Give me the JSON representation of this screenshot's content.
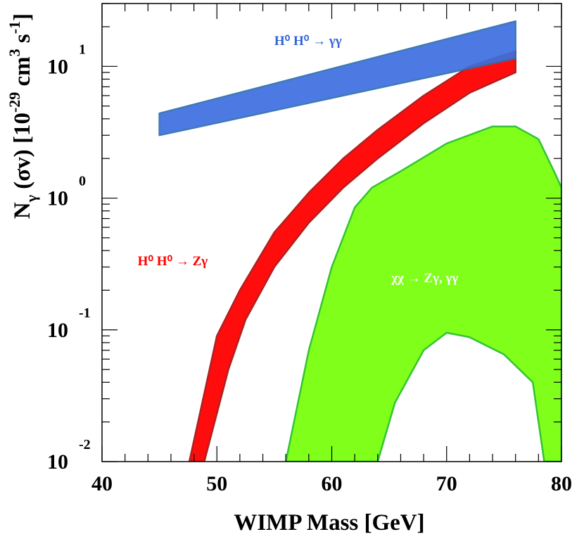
{
  "chart_data": {
    "type": "area",
    "xlabel": "WIMP Mass [GeV]",
    "ylabel": "N_γ (σv) [10^-29 cm^3 s^-1]",
    "ylabel_parts": {
      "base": "N",
      "sub": "γ",
      "mid": " (σv) [10",
      "exp1": "-29",
      "unit1": " cm",
      "exp2": "3",
      "unit2": " s",
      "exp3": "-1",
      "end": "]"
    },
    "xlim": [
      40,
      80
    ],
    "ylim": [
      0.01,
      30
    ],
    "yscale": "log",
    "x_ticks": [
      {
        "value": 40,
        "label": "40"
      },
      {
        "value": 50,
        "label": "50"
      },
      {
        "value": 60,
        "label": "60"
      },
      {
        "value": 70,
        "label": "70"
      },
      {
        "value": 80,
        "label": "80"
      }
    ],
    "y_ticks": [
      {
        "value": 0.01,
        "base": "10",
        "exp": "-2"
      },
      {
        "value": 0.1,
        "base": "10",
        "exp": "-1"
      },
      {
        "value": 1,
        "base": "10",
        "exp": "0"
      },
      {
        "value": 10,
        "base": "10",
        "exp": "1"
      }
    ],
    "series": [
      {
        "name": "H0H0-gammagamma",
        "color": "#3d6fe0",
        "stroke": "#2f6fb0",
        "upper": [
          [
            45,
            4.4
          ],
          [
            76,
            22
          ]
        ],
        "lower": [
          [
            45,
            3.0
          ],
          [
            76,
            11.5
          ]
        ]
      },
      {
        "name": "H0H0-Zgamma",
        "color": "#ff0d0d",
        "stroke": "#b02020",
        "upper": [
          [
            47.6,
            0.01
          ],
          [
            50,
            0.09
          ],
          [
            52,
            0.2
          ],
          [
            55,
            0.55
          ],
          [
            58,
            1.1
          ],
          [
            61,
            2.0
          ],
          [
            64,
            3.3
          ],
          [
            68,
            6.0
          ],
          [
            72,
            10
          ],
          [
            76,
            13
          ]
        ],
        "lower": [
          [
            48.9,
            0.01
          ],
          [
            51,
            0.05
          ],
          [
            52.5,
            0.12
          ],
          [
            55,
            0.3
          ],
          [
            58,
            0.65
          ],
          [
            61,
            1.2
          ],
          [
            64,
            2.0
          ],
          [
            68,
            3.7
          ],
          [
            72,
            6.3
          ],
          [
            76,
            9.0
          ]
        ]
      },
      {
        "name": "chichi-Zgamma-gammagamma",
        "color": "#7fff1a",
        "stroke": "#33c433",
        "outer": [
          [
            56,
            0.01
          ],
          [
            58,
            0.07
          ],
          [
            60,
            0.3
          ],
          [
            62,
            0.85
          ],
          [
            63.5,
            1.2
          ],
          [
            66,
            1.6
          ],
          [
            70,
            2.6
          ],
          [
            74,
            3.5
          ],
          [
            76,
            3.5
          ],
          [
            78,
            2.8
          ],
          [
            79.5,
            1.5
          ],
          [
            80,
            1.2
          ]
        ],
        "inner": [
          [
            80,
            0.01
          ],
          [
            78.5,
            0.01
          ],
          [
            77.5,
            0.04
          ],
          [
            75,
            0.065
          ],
          [
            72,
            0.088
          ],
          [
            70,
            0.095
          ],
          [
            68,
            0.07
          ],
          [
            65.5,
            0.028
          ],
          [
            64,
            0.01
          ]
        ]
      }
    ],
    "annotations": [
      {
        "text": "H⁰ H⁰  → γγ",
        "x": 55,
        "y": 14.5,
        "color": "#2f63d9",
        "for": "H0H0-gammagamma"
      },
      {
        "text": "H⁰ H⁰  → Zγ",
        "x": 43.1,
        "y": 0.31,
        "color": "#ff0000",
        "for": "H0H0-Zgamma"
      },
      {
        "text": "χχ → Zγ, γγ",
        "x": 65.2,
        "y": 0.23,
        "color": "#ffffff",
        "for": "chichi-Zgamma-gammagamma"
      }
    ]
  }
}
